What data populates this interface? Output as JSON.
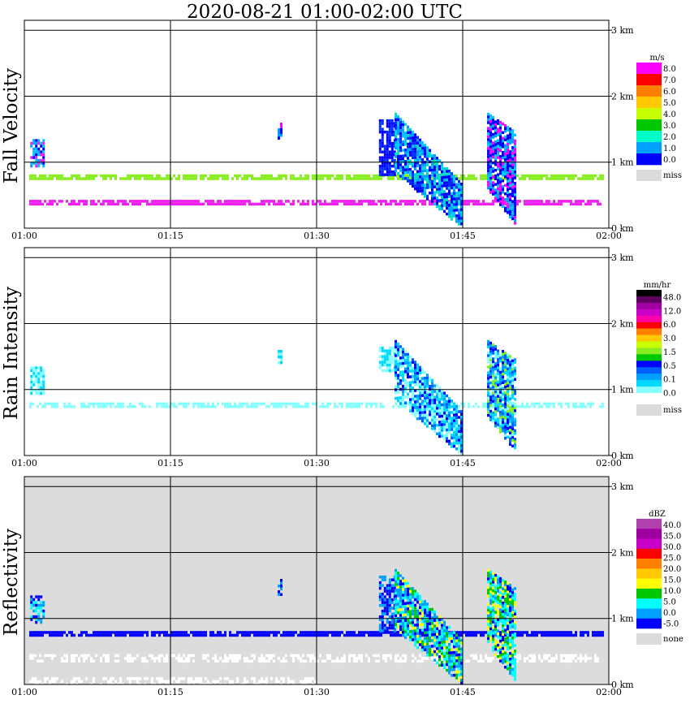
{
  "title": "2020-08-21   01:00-02:00 UTC",
  "colors": {
    "grid": "#000000",
    "missing": "#dcdcdc"
  },
  "chart_data": [
    {
      "type": "heatmap",
      "ylabel": "Fall Velocity",
      "x_ticks": [
        "01:00",
        "01:15",
        "01:30",
        "01:45",
        "02:00"
      ],
      "xlim_minutes": [
        0,
        60
      ],
      "y_ticks": [
        "0 km",
        "1 km",
        "2 km",
        "3 km"
      ],
      "ylim_km": [
        0,
        3.15
      ],
      "background": "#ffffff",
      "colorbar": {
        "unit": "m/s",
        "labels": [
          "8.0",
          "7.0",
          "6.0",
          "5.0",
          "4.0",
          "3.0",
          "2.0",
          "1.0",
          "0.0"
        ],
        "colors": [
          "#ff00ff",
          "#ff0000",
          "#ff7f00",
          "#ffc800",
          "#c8ff00",
          "#00c800",
          "#00ffc8",
          "#00a0ff",
          "#0000ff"
        ],
        "missing_label": "miss"
      },
      "features": [
        {
          "kind": "band",
          "t0": 0.5,
          "t1": 59.5,
          "z": 0.78,
          "thick": 0.07,
          "color": "#88ee22",
          "density": 0.8
        },
        {
          "kind": "band",
          "t0": 0.5,
          "t1": 59.5,
          "z": 0.4,
          "thick": 0.06,
          "color": "#ee22ee",
          "density": 0.8
        },
        {
          "kind": "blob",
          "t0": 0.6,
          "t1": 2.0,
          "z0": 0.95,
          "z1": 1.35,
          "colors": [
            "#0000ff",
            "#00a0ff",
            "#00c0ff",
            "#ee22ee"
          ]
        },
        {
          "kind": "blob",
          "t0": 26.0,
          "t1": 26.5,
          "z0": 1.35,
          "z1": 1.6,
          "colors": [
            "#0000ff",
            "#00a0ff",
            "#ff00ff"
          ]
        },
        {
          "kind": "blob",
          "t0": 36.4,
          "t1": 38.0,
          "z0": 0.8,
          "z1": 1.65,
          "colors": [
            "#0000ff",
            "#0030ff"
          ]
        },
        {
          "kind": "slant",
          "t0": 38.0,
          "t1": 45.0,
          "ztop0": 1.75,
          "ztop1": 0.65,
          "zbot0": 0.85,
          "zbot1": 0.0,
          "colors": [
            "#0000ff",
            "#0000ff",
            "#00a0ff",
            "#00c8ff",
            "#00e0c0",
            "#0030ff"
          ]
        },
        {
          "kind": "slant",
          "t0": 47.5,
          "t1": 50.5,
          "ztop0": 1.75,
          "ztop1": 1.45,
          "zbot0": 0.6,
          "zbot1": 0.05,
          "colors": [
            "#0000ff",
            "#00a0ff",
            "#00c8ff",
            "#0000ff",
            "#ff00ff"
          ]
        }
      ]
    },
    {
      "type": "heatmap",
      "ylabel": "Rain Intensity",
      "x_ticks": [
        "01:00",
        "01:15",
        "01:30",
        "01:45",
        "02:00"
      ],
      "xlim_minutes": [
        0,
        60
      ],
      "y_ticks": [
        "0 km",
        "1 km",
        "2 km",
        "3 km"
      ],
      "ylim_km": [
        0,
        3.15
      ],
      "background": "#ffffff",
      "colorbar": {
        "unit": "mm/hr",
        "labels": [
          "48.0",
          "12.0",
          "6.0",
          "3.0",
          "1.5",
          "0.5",
          "0.1",
          "0.0"
        ],
        "colors": [
          "#000000",
          "#600060",
          "#a000a0",
          "#c800c8",
          "#ff00aa",
          "#ff0000",
          "#ff7f00",
          "#ffc800",
          "#c8ff00",
          "#88ee22",
          "#00c800",
          "#0000ff",
          "#0060ff",
          "#00a0ff",
          "#00d8ff",
          "#88ffff",
          "#ffffff"
        ],
        "missing_label": "miss"
      },
      "features": [
        {
          "kind": "band",
          "t0": 0.5,
          "t1": 59.5,
          "z": 0.78,
          "thick": 0.05,
          "color": "#88ffff",
          "density": 0.65
        },
        {
          "kind": "blob",
          "t0": 0.6,
          "t1": 2.0,
          "z0": 0.95,
          "z1": 1.35,
          "colors": [
            "#88ffff",
            "#00d8ff"
          ]
        },
        {
          "kind": "blob",
          "t0": 26.0,
          "t1": 26.5,
          "z0": 1.35,
          "z1": 1.6,
          "colors": [
            "#88ffff",
            "#00d8ff"
          ]
        },
        {
          "kind": "blob",
          "t0": 36.4,
          "t1": 38.0,
          "z0": 1.3,
          "z1": 1.65,
          "colors": [
            "#00d8ff",
            "#88ffff"
          ]
        },
        {
          "kind": "slant",
          "t0": 38.0,
          "t1": 45.0,
          "ztop0": 1.75,
          "ztop1": 0.65,
          "zbot0": 0.85,
          "zbot1": 0.0,
          "colors": [
            "#00d8ff",
            "#88ffff",
            "#00a0ff",
            "#0060ff",
            "#0000ff",
            "#00d8ff",
            "#88ffff"
          ]
        },
        {
          "kind": "slant",
          "t0": 47.5,
          "t1": 50.5,
          "ztop0": 1.75,
          "ztop1": 1.45,
          "zbot0": 0.6,
          "zbot1": 0.05,
          "colors": [
            "#00d8ff",
            "#0060ff",
            "#0000ff",
            "#88ee22",
            "#88ffff",
            "#00a0ff"
          ]
        }
      ]
    },
    {
      "type": "heatmap",
      "ylabel": "Reflectivity",
      "x_ticks": [
        "01:00",
        "01:15",
        "01:30",
        "01:45",
        "02:00"
      ],
      "xlim_minutes": [
        0,
        60
      ],
      "y_ticks": [
        "0 km",
        "1 km",
        "2 km",
        "3 km"
      ],
      "ylim_km": [
        0,
        3.15
      ],
      "background": "#dcdcdc",
      "colorbar": {
        "unit": "dBZ",
        "labels": [
          "40.0",
          "35.0",
          "30.0",
          "25.0",
          "20.0",
          "15.0",
          "10.0",
          "5.0",
          "0.0",
          "-5.0"
        ],
        "colors": [
          "#b040b0",
          "#a000a0",
          "#c800c8",
          "#ff0000",
          "#ff7f00",
          "#ffc800",
          "#ffff00",
          "#00c800",
          "#00ffff",
          "#00a0ff",
          "#0000ff"
        ],
        "missing_label": "none"
      },
      "features": [
        {
          "kind": "band",
          "t0": 0.5,
          "t1": 59.5,
          "z": 0.78,
          "thick": 0.06,
          "color": "#0000ff",
          "density": 0.85
        },
        {
          "kind": "band",
          "t0": 0.5,
          "t1": 59.5,
          "z": 0.4,
          "thick": 0.12,
          "color": "#ffffff",
          "density": 0.55
        },
        {
          "kind": "band",
          "t0": 0.5,
          "t1": 30.0,
          "z": 0.05,
          "thick": 0.12,
          "color": "#ffffff",
          "density": 0.45
        },
        {
          "kind": "blob",
          "t0": 0.6,
          "t1": 2.0,
          "z0": 0.95,
          "z1": 1.35,
          "colors": [
            "#0000ff",
            "#00a0ff",
            "#00ffff"
          ]
        },
        {
          "kind": "blob",
          "t0": 26.0,
          "t1": 26.5,
          "z0": 1.35,
          "z1": 1.6,
          "colors": [
            "#0000ff",
            "#00a0ff"
          ]
        },
        {
          "kind": "blob",
          "t0": 36.4,
          "t1": 38.0,
          "z0": 0.8,
          "z1": 1.65,
          "colors": [
            "#0000ff",
            "#00a0ff"
          ]
        },
        {
          "kind": "slant",
          "t0": 38.0,
          "t1": 45.0,
          "ztop0": 1.75,
          "ztop1": 0.65,
          "zbot0": 0.85,
          "zbot1": 0.0,
          "colors": [
            "#00a0ff",
            "#00ffff",
            "#00c800",
            "#00ffff",
            "#00a0ff",
            "#ffff00",
            "#0000ff"
          ]
        },
        {
          "kind": "slant",
          "t0": 47.5,
          "t1": 50.5,
          "ztop0": 1.75,
          "ztop1": 1.45,
          "zbot0": 0.6,
          "zbot1": 0.05,
          "colors": [
            "#00ffff",
            "#00c800",
            "#ffff00",
            "#00a0ff",
            "#00ffff",
            "#0000ff"
          ]
        }
      ]
    }
  ]
}
